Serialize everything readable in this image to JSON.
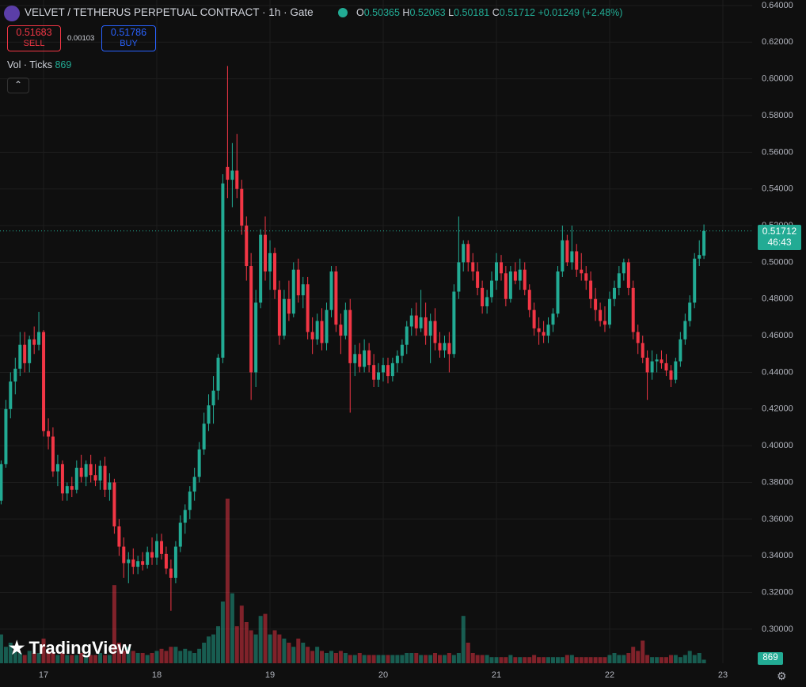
{
  "toolbar": {
    "symbol": "VELVET / TETHERUS PERPETUAL CONTRACT · 1h · Gate",
    "ohlc_labels": [
      "O",
      "H",
      "L",
      "C"
    ],
    "change": "+0.01249 (+2.48%)",
    "sell_price": 0.51683,
    "sell_label": "SELL",
    "spread": 0.00103,
    "buy_price": 0.51786,
    "buy_label": "BUY",
    "volume_label": "Vol · Ticks",
    "countdown": "46:43",
    "logo": "TradingView"
  },
  "chart_data": {
    "type": "candlestick",
    "up_color": "#22ab94",
    "down_color": "#f23645",
    "grid": true,
    "xlim": [
      16.615,
      23.259
    ],
    "xticks": [
      17,
      18,
      19,
      20,
      21,
      22,
      23
    ],
    "ylim": [
      0.2814,
      0.643
    ],
    "yticks": [
      {
        "value": 0.3,
        "label": "0.30000"
      },
      {
        "value": 0.32,
        "label": "0.32000"
      },
      {
        "value": 0.34,
        "label": "0.34000"
      },
      {
        "value": 0.36,
        "label": "0.36000"
      },
      {
        "value": 0.38,
        "label": "0.38000"
      },
      {
        "value": 0.4,
        "label": "0.40000"
      },
      {
        "value": 0.42,
        "label": "0.42000"
      },
      {
        "value": 0.44,
        "label": "0.44000"
      },
      {
        "value": 0.46,
        "label": "0.46000"
      },
      {
        "value": 0.48,
        "label": "0.48000"
      },
      {
        "value": 0.5,
        "label": "0.50000"
      },
      {
        "value": 0.52,
        "label": "0.52000"
      },
      {
        "value": 0.54,
        "label": "0.54000"
      },
      {
        "value": 0.56,
        "label": "0.56000"
      },
      {
        "value": 0.58,
        "label": "0.58000"
      },
      {
        "value": 0.6,
        "label": "0.60000"
      },
      {
        "value": 0.62,
        "label": "0.62000"
      },
      {
        "value": 0.64,
        "label": "0.64000"
      }
    ],
    "volume_ylim": [
      0,
      45000
    ],
    "x": [
      16.625,
      16.667,
      16.708,
      16.75,
      16.792,
      16.833,
      16.875,
      16.917,
      16.958,
      17,
      17.042,
      17.083,
      17.125,
      17.167,
      17.208,
      17.25,
      17.292,
      17.333,
      17.375,
      17.417,
      17.458,
      17.5,
      17.542,
      17.583,
      17.625,
      17.667,
      17.708,
      17.75,
      17.792,
      17.833,
      17.875,
      17.917,
      17.958,
      18,
      18.042,
      18.083,
      18.125,
      18.167,
      18.208,
      18.25,
      18.292,
      18.333,
      18.375,
      18.417,
      18.458,
      18.5,
      18.542,
      18.583,
      18.625,
      18.667,
      18.708,
      18.75,
      18.792,
      18.833,
      18.875,
      18.917,
      18.958,
      19,
      19.042,
      19.083,
      19.125,
      19.167,
      19.208,
      19.25,
      19.292,
      19.333,
      19.375,
      19.417,
      19.458,
      19.5,
      19.542,
      19.583,
      19.625,
      19.667,
      19.708,
      19.75,
      19.792,
      19.833,
      19.875,
      19.917,
      19.958,
      20,
      20.042,
      20.083,
      20.125,
      20.167,
      20.208,
      20.25,
      20.292,
      20.333,
      20.375,
      20.417,
      20.458,
      20.5,
      20.542,
      20.583,
      20.625,
      20.667,
      20.708,
      20.75,
      20.792,
      20.833,
      20.875,
      20.917,
      20.958,
      21,
      21.042,
      21.083,
      21.125,
      21.167,
      21.208,
      21.25,
      21.292,
      21.333,
      21.375,
      21.417,
      21.458,
      21.5,
      21.542,
      21.583,
      21.625,
      21.667,
      21.708,
      21.75,
      21.792,
      21.833,
      21.875,
      21.917,
      21.958,
      22,
      22.042,
      22.083,
      22.125,
      22.167,
      22.208,
      22.25,
      22.292,
      22.333,
      22.375,
      22.417,
      22.458,
      22.5,
      22.542,
      22.583,
      22.625,
      22.667,
      22.708,
      22.75,
      22.792,
      22.833
    ],
    "open": [
      0.37,
      0.39,
      0.42,
      0.435,
      0.442,
      0.455,
      0.445,
      0.458,
      0.455,
      0.462,
      0.408,
      0.405,
      0.386,
      0.39,
      0.374,
      0.378,
      0.376,
      0.388,
      0.383,
      0.39,
      0.384,
      0.381,
      0.389,
      0.376,
      0.38,
      0.356,
      0.345,
      0.336,
      0.338,
      0.334,
      0.337,
      0.335,
      0.342,
      0.339,
      0.348,
      0.341,
      0.333,
      0.328,
      0.345,
      0.358,
      0.365,
      0.375,
      0.383,
      0.398,
      0.412,
      0.422,
      0.43,
      0.448,
      0.552,
      0.545,
      0.55,
      0.54,
      0.52,
      0.498,
      0.44,
      0.478,
      0.515,
      0.495,
      0.505,
      0.485,
      0.46,
      0.48,
      0.472,
      0.496,
      0.482,
      0.488,
      0.462,
      0.458,
      0.468,
      0.456,
      0.474,
      0.495,
      0.466,
      0.46,
      0.474,
      0.445,
      0.45,
      0.443,
      0.452,
      0.444,
      0.436,
      0.44,
      0.444,
      0.438,
      0.445,
      0.449,
      0.455,
      0.465,
      0.471,
      0.464,
      0.47,
      0.46,
      0.468,
      0.456,
      0.452,
      0.456,
      0.45,
      0.484,
      0.5,
      0.51,
      0.5,
      0.495,
      0.486,
      0.476,
      0.481,
      0.49,
      0.5,
      0.494,
      0.48,
      0.495,
      0.49,
      0.496,
      0.485,
      0.474,
      0.464,
      0.462,
      0.46,
      0.466,
      0.472,
      0.495,
      0.512,
      0.5,
      0.506,
      0.496,
      0.494,
      0.49,
      0.48,
      0.474,
      0.468,
      0.466,
      0.48,
      0.486,
      0.494,
      0.5,
      0.486,
      0.462,
      0.456,
      0.448,
      0.44,
      0.446,
      0.447,
      0.445,
      0.441,
      0.436,
      0.446,
      0.458,
      0.468,
      0.478,
      0.502,
      0.50365
    ],
    "high": [
      0.392,
      0.425,
      0.44,
      0.448,
      0.462,
      0.462,
      0.46,
      0.465,
      0.473,
      0.463,
      0.415,
      0.41,
      0.395,
      0.392,
      0.38,
      0.383,
      0.392,
      0.395,
      0.392,
      0.395,
      0.39,
      0.392,
      0.394,
      0.385,
      0.382,
      0.36,
      0.35,
      0.342,
      0.344,
      0.34,
      0.342,
      0.345,
      0.35,
      0.352,
      0.352,
      0.345,
      0.338,
      0.348,
      0.362,
      0.368,
      0.378,
      0.388,
      0.402,
      0.418,
      0.428,
      0.438,
      0.45,
      0.548,
      0.607,
      0.565,
      0.57,
      0.545,
      0.525,
      0.505,
      0.485,
      0.518,
      0.525,
      0.512,
      0.508,
      0.49,
      0.485,
      0.49,
      0.5,
      0.502,
      0.492,
      0.492,
      0.47,
      0.472,
      0.475,
      0.478,
      0.498,
      0.498,
      0.472,
      0.478,
      0.48,
      0.455,
      0.456,
      0.458,
      0.456,
      0.45,
      0.445,
      0.448,
      0.448,
      0.448,
      0.452,
      0.458,
      0.468,
      0.475,
      0.478,
      0.485,
      0.478,
      0.472,
      0.475,
      0.462,
      0.46,
      0.462,
      0.488,
      0.525,
      0.512,
      0.512,
      0.505,
      0.5,
      0.49,
      0.485,
      0.495,
      0.505,
      0.504,
      0.498,
      0.498,
      0.5,
      0.502,
      0.5,
      0.488,
      0.478,
      0.47,
      0.468,
      0.47,
      0.475,
      0.498,
      0.52,
      0.515,
      0.52,
      0.51,
      0.505,
      0.498,
      0.495,
      0.486,
      0.478,
      0.476,
      0.484,
      0.49,
      0.498,
      0.502,
      0.502,
      0.49,
      0.466,
      0.46,
      0.452,
      0.452,
      0.45,
      0.452,
      0.45,
      0.444,
      0.448,
      0.462,
      0.472,
      0.482,
      0.505,
      0.512,
      0.52063
    ],
    "low": [
      0.368,
      0.388,
      0.415,
      0.428,
      0.438,
      0.44,
      0.44,
      0.45,
      0.452,
      0.405,
      0.398,
      0.383,
      0.378,
      0.37,
      0.37,
      0.372,
      0.374,
      0.38,
      0.378,
      0.38,
      0.378,
      0.376,
      0.372,
      0.37,
      0.352,
      0.34,
      0.328,
      0.325,
      0.33,
      0.33,
      0.332,
      0.333,
      0.335,
      0.335,
      0.338,
      0.33,
      0.31,
      0.325,
      0.342,
      0.352,
      0.36,
      0.37,
      0.38,
      0.395,
      0.408,
      0.412,
      0.425,
      0.445,
      0.535,
      0.53,
      0.535,
      0.515,
      0.49,
      0.425,
      0.432,
      0.475,
      0.49,
      0.485,
      0.48,
      0.455,
      0.458,
      0.468,
      0.47,
      0.478,
      0.475,
      0.458,
      0.45,
      0.455,
      0.452,
      0.452,
      0.47,
      0.462,
      0.45,
      0.458,
      0.418,
      0.438,
      0.44,
      0.44,
      0.44,
      0.432,
      0.432,
      0.435,
      0.434,
      0.435,
      0.44,
      0.445,
      0.45,
      0.46,
      0.46,
      0.462,
      0.455,
      0.445,
      0.452,
      0.448,
      0.448,
      0.44,
      0.448,
      0.48,
      0.495,
      0.495,
      0.49,
      0.482,
      0.472,
      0.472,
      0.478,
      0.485,
      0.49,
      0.476,
      0.478,
      0.488,
      0.485,
      0.482,
      0.47,
      0.46,
      0.455,
      0.456,
      0.456,
      0.462,
      0.47,
      0.492,
      0.498,
      0.496,
      0.492,
      0.49,
      0.485,
      0.475,
      0.468,
      0.465,
      0.462,
      0.464,
      0.476,
      0.482,
      0.49,
      0.482,
      0.458,
      0.45,
      0.445,
      0.425,
      0.436,
      0.44,
      0.442,
      0.438,
      0.432,
      0.434,
      0.443,
      0.455,
      0.465,
      0.475,
      0.498,
      0.50181
    ],
    "close": [
      0.39,
      0.42,
      0.435,
      0.442,
      0.455,
      0.445,
      0.458,
      0.455,
      0.462,
      0.408,
      0.405,
      0.386,
      0.39,
      0.374,
      0.378,
      0.376,
      0.388,
      0.383,
      0.39,
      0.384,
      0.381,
      0.389,
      0.376,
      0.38,
      0.356,
      0.345,
      0.336,
      0.338,
      0.334,
      0.337,
      0.335,
      0.342,
      0.339,
      0.348,
      0.341,
      0.333,
      0.328,
      0.345,
      0.358,
      0.365,
      0.375,
      0.383,
      0.398,
      0.412,
      0.422,
      0.43,
      0.448,
      0.543,
      0.545,
      0.55,
      0.54,
      0.52,
      0.498,
      0.44,
      0.478,
      0.515,
      0.495,
      0.505,
      0.485,
      0.46,
      0.48,
      0.472,
      0.496,
      0.482,
      0.488,
      0.462,
      0.458,
      0.468,
      0.456,
      0.474,
      0.495,
      0.466,
      0.46,
      0.474,
      0.445,
      0.45,
      0.443,
      0.452,
      0.444,
      0.436,
      0.44,
      0.444,
      0.438,
      0.445,
      0.449,
      0.455,
      0.465,
      0.471,
      0.464,
      0.47,
      0.46,
      0.468,
      0.456,
      0.452,
      0.456,
      0.45,
      0.484,
      0.5,
      0.51,
      0.5,
      0.495,
      0.486,
      0.476,
      0.481,
      0.49,
      0.5,
      0.494,
      0.48,
      0.495,
      0.49,
      0.496,
      0.485,
      0.474,
      0.464,
      0.462,
      0.46,
      0.466,
      0.472,
      0.495,
      0.512,
      0.5,
      0.506,
      0.496,
      0.494,
      0.49,
      0.48,
      0.474,
      0.468,
      0.466,
      0.48,
      0.486,
      0.494,
      0.5,
      0.486,
      0.462,
      0.456,
      0.448,
      0.44,
      0.446,
      0.447,
      0.445,
      0.441,
      0.436,
      0.446,
      0.458,
      0.468,
      0.478,
      0.502,
      0.504,
      0.51712
    ],
    "volume": [
      7000,
      4000,
      5000,
      3000,
      2500,
      2000,
      3000,
      2500,
      2500,
      6000,
      3000,
      2500,
      2000,
      2500,
      2000,
      2000,
      2000,
      2500,
      2000,
      2000,
      2000,
      2500,
      2000,
      2000,
      19000,
      5000,
      3000,
      4000,
      3000,
      2500,
      2500,
      2000,
      2500,
      3000,
      3500,
      3000,
      4000,
      4000,
      3000,
      3500,
      3000,
      2500,
      3500,
      5000,
      6500,
      7000,
      9000,
      15000,
      40000,
      17000,
      9000,
      14000,
      10000,
      8000,
      7000,
      11500,
      12000,
      7000,
      8000,
      7000,
      6000,
      5000,
      4000,
      6000,
      5000,
      4000,
      3000,
      4000,
      3000,
      2500,
      3000,
      2500,
      3000,
      2500,
      2000,
      2000,
      2500,
      2000,
      2000,
      2000,
      2000,
      2000,
      2000,
      2000,
      2000,
      2000,
      2500,
      2500,
      2500,
      2000,
      2000,
      2000,
      2500,
      2000,
      2000,
      2500,
      2000,
      2500,
      11500,
      5000,
      2500,
      2000,
      2000,
      2000,
      1500,
      1500,
      1500,
      1500,
      2000,
      1500,
      1500,
      1500,
      1500,
      2000,
      1500,
      1500,
      1500,
      1500,
      1500,
      1500,
      2000,
      2000,
      1500,
      1500,
      1500,
      1500,
      1500,
      1500,
      1500,
      2000,
      2500,
      2000,
      2000,
      2500,
      4000,
      3000,
      5500,
      2000,
      1500,
      1500,
      1500,
      1500,
      2000,
      2000,
      1500,
      2000,
      3000,
      2000,
      2500,
      869
    ]
  }
}
